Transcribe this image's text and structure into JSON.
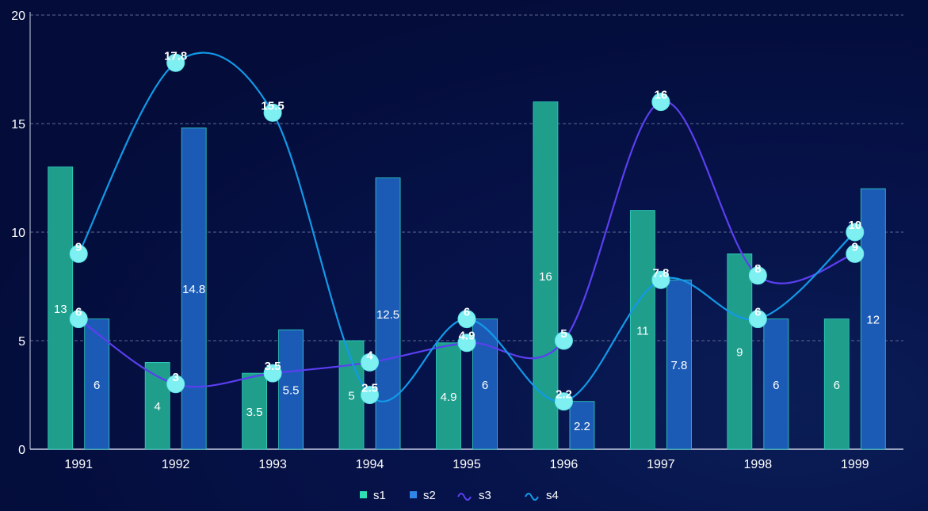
{
  "chart_data": {
    "type": "bar",
    "title": "",
    "xlabel": "",
    "ylabel": "",
    "ylim": [
      0,
      20
    ],
    "y_ticks": [
      "0",
      "5",
      "10",
      "15",
      "20"
    ],
    "categories": [
      "1991",
      "1992",
      "1993",
      "1994",
      "1995",
      "1996",
      "1997",
      "1998",
      "1999"
    ],
    "grid": "horizontal dashed",
    "legend_position": "bottom-center",
    "series": [
      {
        "name": "s1",
        "type": "bar",
        "color": "#1f9e8c",
        "values": [
          13,
          4,
          3.5,
          5,
          4.9,
          16,
          11,
          9,
          6
        ]
      },
      {
        "name": "s2",
        "type": "bar",
        "color": "#1c5bb5",
        "values": [
          6,
          14.8,
          5.5,
          12.5,
          6,
          2.2,
          7.8,
          6,
          12
        ]
      },
      {
        "name": "s3",
        "type": "line",
        "color": "#5b3ff0",
        "values": [
          6,
          3,
          3.5,
          4,
          4.9,
          5,
          16,
          8,
          9
        ]
      },
      {
        "name": "s4",
        "type": "line",
        "color": "#1299e8",
        "values": [
          9,
          17.8,
          15.5,
          2.5,
          6,
          2.2,
          7.8,
          6,
          10
        ]
      }
    ]
  }
}
